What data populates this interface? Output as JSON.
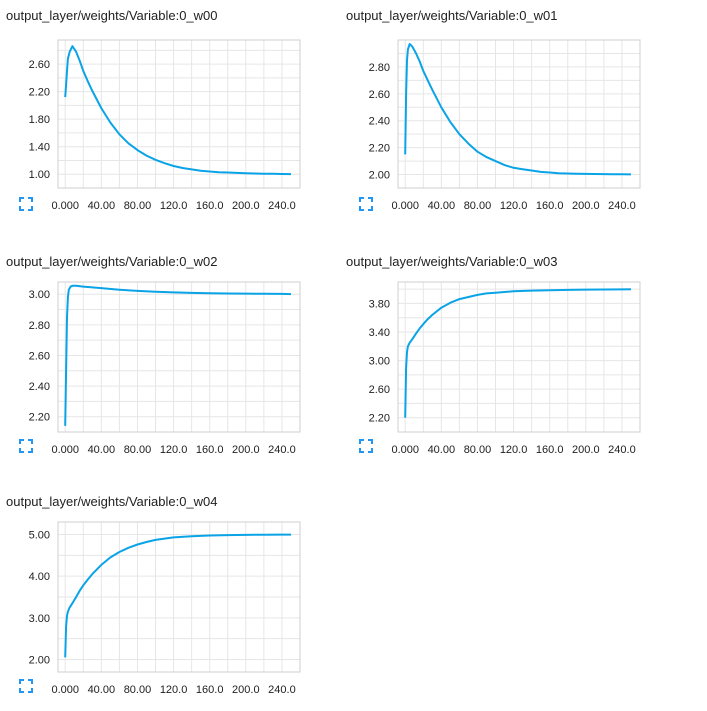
{
  "colors": {
    "line": "#0aa4e6",
    "grid": "#e6e6e6",
    "axis": "#cfcfcf",
    "expand_icon": "#2196f3"
  },
  "icons": {
    "expand": "fullscreen-expand-icon"
  },
  "cards": [
    {
      "title": "output_layer/weights/Variable:0_w00",
      "chart_data": {
        "type": "line",
        "x_ticks": [
          "0.000",
          "40.00",
          "80.00",
          "120.0",
          "160.0",
          "200.0",
          "240.0"
        ],
        "y_ticks": [
          "1.00",
          "1.40",
          "1.80",
          "2.20",
          "2.60"
        ],
        "xlim": [
          -8,
          260
        ],
        "ylim": [
          0.8,
          2.95
        ],
        "series": [
          {
            "x": [
              0,
              1,
              2,
              3,
              5,
              8,
              12,
              16,
              20,
              25,
              30,
              40,
              50,
              60,
              70,
              80,
              90,
              100,
              110,
              120,
              130,
              140,
              150,
              160,
              170,
              180,
              190,
              200,
              210,
              220,
              230,
              240,
              250
            ],
            "y": [
              2.12,
              2.3,
              2.5,
              2.68,
              2.78,
              2.86,
              2.78,
              2.65,
              2.5,
              2.35,
              2.21,
              1.96,
              1.75,
              1.58,
              1.45,
              1.35,
              1.27,
              1.21,
              1.16,
              1.12,
              1.09,
              1.07,
              1.05,
              1.04,
              1.03,
              1.025,
              1.02,
              1.015,
              1.01,
              1.008,
              1.006,
              1.004,
              1.002
            ]
          }
        ]
      }
    },
    {
      "title": "output_layer/weights/Variable:0_w01",
      "chart_data": {
        "type": "line",
        "x_ticks": [
          "0.000",
          "40.00",
          "80.00",
          "120.0",
          "160.0",
          "200.0",
          "240.0"
        ],
        "y_ticks": [
          "2.00",
          "2.20",
          "2.40",
          "2.60",
          "2.80"
        ],
        "xlim": [
          -8,
          260
        ],
        "ylim": [
          1.9,
          3.0
        ],
        "series": [
          {
            "x": [
              0,
              1,
              2,
              3,
              5,
              8,
              12,
              16,
              20,
              25,
              30,
              40,
              50,
              60,
              70,
              80,
              90,
              100,
              110,
              120,
              130,
              140,
              150,
              160,
              170,
              180,
              190,
              200,
              210,
              220,
              230,
              240,
              250
            ],
            "y": [
              2.15,
              2.6,
              2.85,
              2.93,
              2.97,
              2.95,
              2.9,
              2.84,
              2.77,
              2.7,
              2.63,
              2.5,
              2.39,
              2.3,
              2.23,
              2.17,
              2.13,
              2.1,
              2.07,
              2.05,
              2.04,
              2.03,
              2.02,
              2.015,
              2.01,
              2.008,
              2.006,
              2.005,
              2.004,
              2.003,
              2.002,
              2.002,
              2.001
            ]
          }
        ]
      }
    },
    {
      "title": "output_layer/weights/Variable:0_w02",
      "chart_data": {
        "type": "line",
        "x_ticks": [
          "0.000",
          "40.00",
          "80.00",
          "120.0",
          "160.0",
          "200.0",
          "240.0"
        ],
        "y_ticks": [
          "2.20",
          "2.40",
          "2.60",
          "2.80",
          "3.00"
        ],
        "xlim": [
          -8,
          260
        ],
        "ylim": [
          2.1,
          3.08
        ],
        "series": [
          {
            "x": [
              0,
              1,
              2,
              3,
              4,
              6,
              8,
              12,
              20,
              40,
              60,
              80,
              100,
              120,
              140,
              160,
              180,
              200,
              220,
              240,
              250
            ],
            "y": [
              2.14,
              2.5,
              2.85,
              2.98,
              3.03,
              3.05,
              3.055,
              3.055,
              3.05,
              3.04,
              3.03,
              3.022,
              3.016,
              3.012,
              3.009,
              3.007,
              3.005,
              3.004,
              3.003,
              3.002,
              3.001
            ]
          }
        ]
      }
    },
    {
      "title": "output_layer/weights/Variable:0_w03",
      "chart_data": {
        "type": "line",
        "x_ticks": [
          "0.000",
          "40.00",
          "80.00",
          "120.0",
          "160.0",
          "200.0",
          "240.0"
        ],
        "y_ticks": [
          "2.20",
          "2.60",
          "3.00",
          "3.40",
          "3.80"
        ],
        "xlim": [
          -8,
          260
        ],
        "ylim": [
          2.0,
          4.1
        ],
        "series": [
          {
            "x": [
              0,
              1,
              2,
              3,
              5,
              8,
              12,
              16,
              20,
              25,
              30,
              40,
              50,
              60,
              70,
              80,
              90,
              100,
              120,
              140,
              160,
              180,
              200,
              220,
              240,
              250
            ],
            "y": [
              2.2,
              2.9,
              3.12,
              3.2,
              3.25,
              3.3,
              3.38,
              3.45,
              3.51,
              3.58,
              3.64,
              3.74,
              3.81,
              3.86,
              3.89,
              3.92,
              3.94,
              3.95,
              3.97,
              3.98,
              3.985,
              3.99,
              3.993,
              3.995,
              3.997,
              3.998
            ]
          }
        ]
      }
    },
    {
      "title": "output_layer/weights/Variable:0_w04",
      "chart_data": {
        "type": "line",
        "x_ticks": [
          "0.000",
          "40.00",
          "80.00",
          "120.0",
          "160.0",
          "200.0",
          "240.0"
        ],
        "y_ticks": [
          "2.00",
          "3.00",
          "4.00",
          "5.00"
        ],
        "xlim": [
          -8,
          260
        ],
        "ylim": [
          1.7,
          5.3
        ],
        "series": [
          {
            "x": [
              0,
              1,
              2,
              3,
              5,
              8,
              12,
              16,
              20,
              25,
              30,
              40,
              50,
              60,
              70,
              80,
              90,
              100,
              120,
              140,
              160,
              180,
              200,
              220,
              240,
              250
            ],
            "y": [
              2.05,
              2.8,
              3.05,
              3.15,
              3.25,
              3.35,
              3.5,
              3.65,
              3.78,
              3.92,
              4.05,
              4.27,
              4.45,
              4.58,
              4.68,
              4.76,
              4.82,
              4.87,
              4.93,
              4.96,
              4.975,
              4.985,
              4.99,
              4.995,
              4.997,
              4.998
            ]
          }
        ]
      }
    }
  ]
}
